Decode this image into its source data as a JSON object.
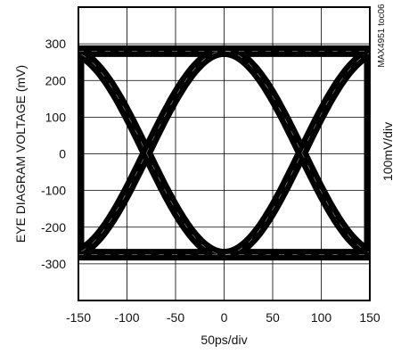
{
  "chart_data": {
    "type": "line",
    "title": "",
    "xlabel": "50ps/div",
    "ylabel": "EYE DIAGRAM VOLTAGE (mV)",
    "right_label": "100mV/div",
    "figure_id": "MAX4951 toc06",
    "xlim": [
      -150,
      150
    ],
    "ylim": [
      -400,
      400
    ],
    "x_ticks": [
      -150,
      -100,
      -50,
      0,
      50,
      100,
      150
    ],
    "y_ticks": [
      300,
      200,
      100,
      0,
      -100,
      -200,
      -300
    ],
    "grid": true,
    "legend": "none",
    "series": [
      {
        "name": "",
        "description_key": "eye",
        "level_high_mv": 280,
        "level_low_mv": -275,
        "crossing_ps": [
          -80,
          80
        ],
        "period_ps": 160,
        "color": "#000000"
      }
    ]
  }
}
